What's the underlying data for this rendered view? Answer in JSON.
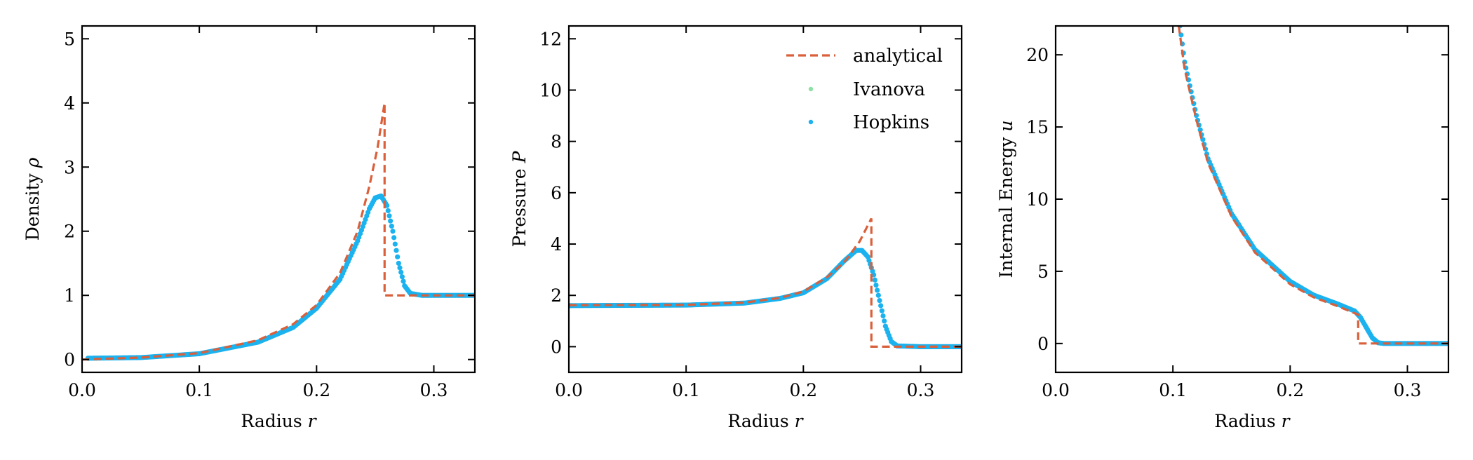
{
  "colors": {
    "analytical": "#d9603b",
    "ivanova": "#8ee0a4",
    "hopkins": "#1ab2ef"
  },
  "legend": {
    "placement": "top-right",
    "entries": [
      "analytical",
      "Ivanova",
      "Hopkins"
    ]
  },
  "chart_data": [
    {
      "type": "line",
      "title": "",
      "xlabel": "Radius",
      "xlabel_symbol": "r",
      "ylabel": "Density",
      "ylabel_symbol": "ρ",
      "xlim": [
        0.0,
        0.335
      ],
      "ylim": [
        -0.2,
        5.2
      ],
      "xticks": [
        0.0,
        0.1,
        0.2,
        0.3
      ],
      "xtick_labels": [
        "0.0",
        "0.1",
        "0.2",
        "0.3"
      ],
      "yticks": [
        0,
        1,
        2,
        3,
        4,
        5
      ],
      "ytick_labels": [
        "0",
        "1",
        "2",
        "3",
        "4",
        "5"
      ],
      "series": [
        {
          "name": "analytical",
          "style": "dashed",
          "x": [
            0.0,
            0.05,
            0.1,
            0.15,
            0.18,
            0.2,
            0.22,
            0.235,
            0.245,
            0.252,
            0.258,
            0.258,
            0.29,
            0.335
          ],
          "y": [
            0.0,
            0.03,
            0.1,
            0.3,
            0.55,
            0.85,
            1.35,
            2.0,
            2.7,
            3.3,
            4.0,
            1.0,
            1.0,
            1.0
          ]
        },
        {
          "name": "Ivanova",
          "style": "points",
          "x": [
            0.005,
            0.05,
            0.1,
            0.15,
            0.18,
            0.2,
            0.22,
            0.235,
            0.245,
            0.25,
            0.255,
            0.26,
            0.265,
            0.27,
            0.275,
            0.28,
            0.29,
            0.31,
            0.335
          ],
          "y": [
            0.02,
            0.03,
            0.09,
            0.27,
            0.5,
            0.8,
            1.25,
            1.85,
            2.35,
            2.52,
            2.55,
            2.4,
            2.0,
            1.5,
            1.15,
            1.03,
            1.0,
            1.0,
            1.0
          ]
        },
        {
          "name": "Hopkins",
          "style": "points",
          "x": [
            0.005,
            0.05,
            0.1,
            0.15,
            0.18,
            0.2,
            0.22,
            0.235,
            0.245,
            0.25,
            0.255,
            0.26,
            0.265,
            0.27,
            0.275,
            0.28,
            0.29,
            0.31,
            0.335
          ],
          "y": [
            0.02,
            0.03,
            0.09,
            0.27,
            0.5,
            0.8,
            1.25,
            1.85,
            2.35,
            2.52,
            2.55,
            2.4,
            2.0,
            1.5,
            1.15,
            1.03,
            1.0,
            1.0,
            1.0
          ]
        }
      ]
    },
    {
      "type": "line",
      "title": "",
      "xlabel": "Radius",
      "xlabel_symbol": "r",
      "ylabel": "Pressure",
      "ylabel_symbol": "P",
      "xlim": [
        0.0,
        0.335
      ],
      "ylim": [
        -1.0,
        12.5
      ],
      "xticks": [
        0.0,
        0.1,
        0.2,
        0.3
      ],
      "xtick_labels": [
        "0.0",
        "0.1",
        "0.2",
        "0.3"
      ],
      "yticks": [
        0,
        2,
        4,
        6,
        8,
        10,
        12
      ],
      "ytick_labels": [
        "0",
        "2",
        "4",
        "6",
        "8",
        "10",
        "12"
      ],
      "series": [
        {
          "name": "analytical",
          "style": "dashed",
          "x": [
            0.0,
            0.1,
            0.15,
            0.18,
            0.2,
            0.22,
            0.235,
            0.248,
            0.258,
            0.258,
            0.3,
            0.335
          ],
          "y": [
            1.62,
            1.63,
            1.72,
            1.9,
            2.15,
            2.7,
            3.3,
            4.1,
            5.0,
            0.0,
            0.0,
            0.0
          ]
        },
        {
          "name": "Ivanova",
          "style": "points",
          "x": [
            0.0,
            0.1,
            0.15,
            0.18,
            0.2,
            0.22,
            0.235,
            0.245,
            0.25,
            0.255,
            0.26,
            0.265,
            0.27,
            0.275,
            0.28,
            0.3,
            0.335
          ],
          "y": [
            1.6,
            1.62,
            1.7,
            1.88,
            2.1,
            2.65,
            3.35,
            3.75,
            3.75,
            3.5,
            2.8,
            1.8,
            0.8,
            0.2,
            0.03,
            0.0,
            0.0
          ]
        },
        {
          "name": "Hopkins",
          "style": "points",
          "x": [
            0.0,
            0.1,
            0.15,
            0.18,
            0.2,
            0.22,
            0.235,
            0.245,
            0.25,
            0.255,
            0.26,
            0.265,
            0.27,
            0.275,
            0.28,
            0.3,
            0.335
          ],
          "y": [
            1.6,
            1.62,
            1.7,
            1.88,
            2.1,
            2.65,
            3.35,
            3.75,
            3.75,
            3.5,
            2.8,
            1.8,
            0.8,
            0.2,
            0.03,
            0.0,
            0.0
          ]
        }
      ]
    },
    {
      "type": "line",
      "title": "",
      "xlabel": "Radius",
      "xlabel_symbol": "r",
      "ylabel": "Internal Energy",
      "ylabel_symbol": "u",
      "xlim": [
        0.0,
        0.335
      ],
      "ylim": [
        -2.0,
        22.0
      ],
      "xticks": [
        0.0,
        0.1,
        0.2,
        0.3
      ],
      "xtick_labels": [
        "0.0",
        "0.1",
        "0.2",
        "0.3"
      ],
      "yticks": [
        0,
        5,
        10,
        15,
        20
      ],
      "ytick_labels": [
        "0",
        "5",
        "10",
        "15",
        "20"
      ],
      "series": [
        {
          "name": "analytical",
          "style": "dashed",
          "x": [
            0.105,
            0.11,
            0.12,
            0.13,
            0.15,
            0.17,
            0.2,
            0.22,
            0.24,
            0.255,
            0.258,
            0.258,
            0.3,
            0.335
          ],
          "y": [
            22.0,
            19.0,
            15.5,
            12.5,
            8.8,
            6.3,
            4.1,
            3.2,
            2.6,
            2.1,
            2.0,
            0.0,
            0.0,
            0.0
          ]
        },
        {
          "name": "Ivanova",
          "style": "points",
          "x": [
            0.106,
            0.11,
            0.12,
            0.13,
            0.15,
            0.17,
            0.2,
            0.22,
            0.24,
            0.255,
            0.26,
            0.265,
            0.27,
            0.275,
            0.28,
            0.3,
            0.335
          ],
          "y": [
            22.0,
            19.5,
            15.8,
            12.8,
            9.0,
            6.5,
            4.3,
            3.35,
            2.75,
            2.25,
            1.8,
            1.1,
            0.4,
            0.05,
            0.0,
            0.0,
            0.0
          ]
        },
        {
          "name": "Hopkins",
          "style": "points",
          "x": [
            0.106,
            0.11,
            0.12,
            0.13,
            0.15,
            0.17,
            0.2,
            0.22,
            0.24,
            0.255,
            0.26,
            0.265,
            0.27,
            0.275,
            0.28,
            0.3,
            0.335
          ],
          "y": [
            22.0,
            19.5,
            15.8,
            12.8,
            9.0,
            6.5,
            4.3,
            3.35,
            2.75,
            2.25,
            1.8,
            1.1,
            0.4,
            0.05,
            0.0,
            0.0,
            0.0
          ]
        }
      ]
    }
  ]
}
